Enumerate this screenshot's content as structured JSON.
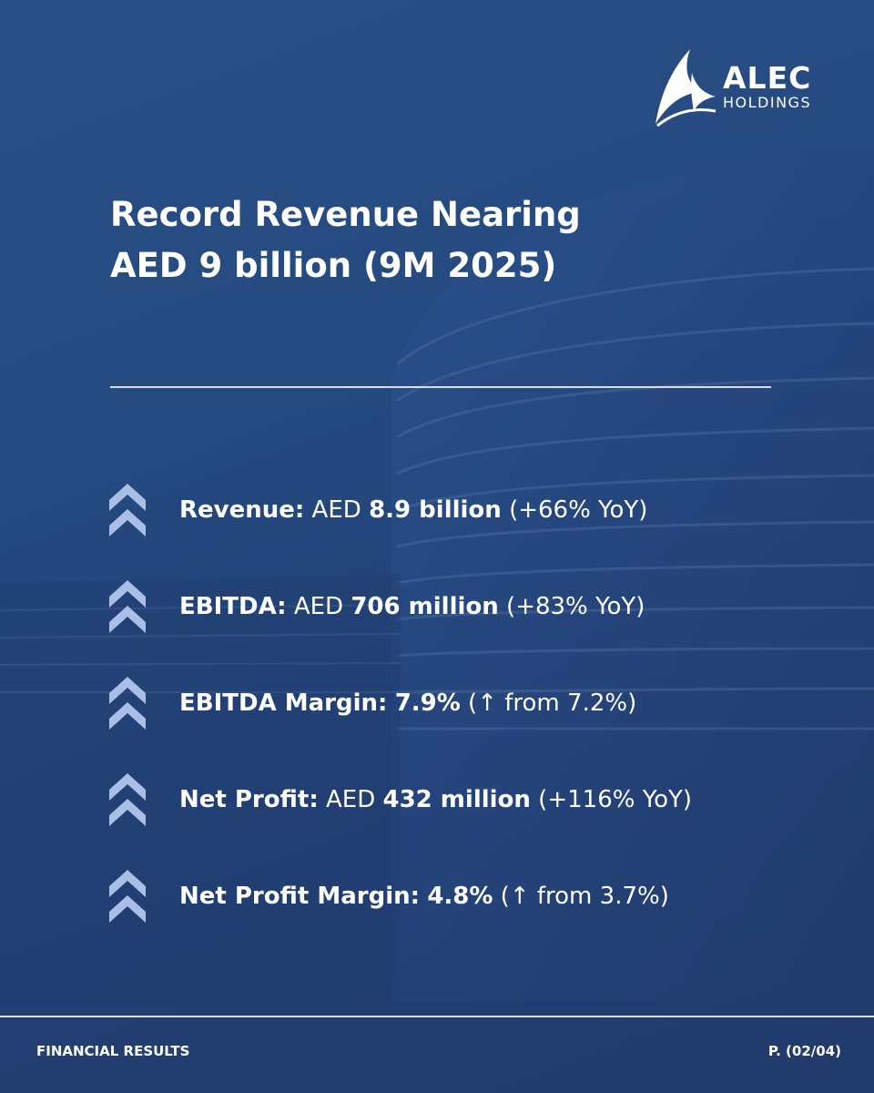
{
  "brand": {
    "name": "ALEC",
    "subtitle": "HOLDINGS"
  },
  "title": {
    "line1": "Record Revenue Nearing",
    "line2": "AED 9 billion (9M 2025)"
  },
  "metrics": [
    {
      "label": "Revenue:",
      "prefix": " AED ",
      "value": "8.9 billion",
      "note": " (+66% YoY)"
    },
    {
      "label": "EBITDA:",
      "prefix": " AED ",
      "value": "706 million",
      "note": " (+83% YoY)"
    },
    {
      "label": "EBITDA Margin:",
      "prefix": " ",
      "value": "7.9%",
      "note": " (↑ from 7.2%)"
    },
    {
      "label": "Net Profit:",
      "prefix": " AED ",
      "value": "432 million",
      "note": " (+116% YoY)"
    },
    {
      "label": "Net Profit Margin:",
      "prefix": " ",
      "value": "4.8%",
      "note": " (↑ from 3.7%)"
    }
  ],
  "icons": {
    "bullet": "double-chevron-up-icon",
    "logo": "sail-logo-icon"
  },
  "colors": {
    "background": "#244a80",
    "text": "#ffffff",
    "chevron": "#a9bfe6",
    "divider": "#d9dee8"
  },
  "footer": {
    "left": "FINANCIAL RESULTS",
    "right": "P. (02/04)"
  }
}
